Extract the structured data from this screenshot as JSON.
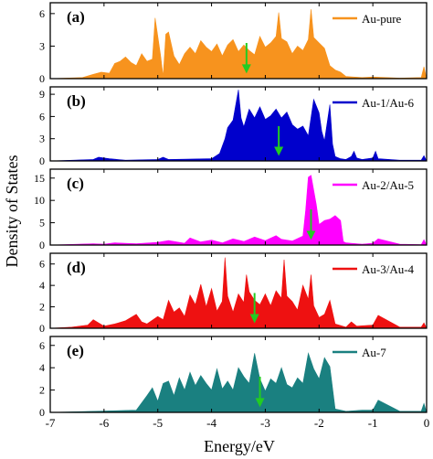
{
  "chart_data": {
    "type": "area",
    "xlabel": "Energy/eV",
    "ylabel": "Density of States",
    "xlim": [
      -7,
      0
    ],
    "x_ticks": [
      "-7",
      "-6",
      "-5",
      "-4",
      "-3",
      "-2",
      "-1",
      "0"
    ],
    "x_tick_values": [
      -7,
      -6,
      -5,
      -4,
      -3,
      -2,
      -1,
      0
    ],
    "grid": false,
    "legend_placement": "top-right",
    "arrow_color": "#22cc22",
    "panels": [
      {
        "label": "(a)",
        "series": [
          {
            "name": "Au-pure",
            "color": "#f7931e",
            "x": [
              -7,
              -6.4,
              -6.2,
              -6.05,
              -5.9,
              -5.8,
              -5.7,
              -5.6,
              -5.5,
              -5.4,
              -5.3,
              -5.2,
              -5.1,
              -5.05,
              -4.95,
              -4.9,
              -4.85,
              -4.8,
              -4.7,
              -4.6,
              -4.5,
              -4.4,
              -4.3,
              -4.2,
              -4.1,
              -4.0,
              -3.9,
              -3.8,
              -3.7,
              -3.6,
              -3.5,
              -3.4,
              -3.3,
              -3.2,
              -3.1,
              -3.0,
              -2.9,
              -2.8,
              -2.75,
              -2.7,
              -2.6,
              -2.5,
              -2.4,
              -2.3,
              -2.2,
              -2.15,
              -2.1,
              -2.0,
              -1.9,
              -1.8,
              -1.7,
              -1.6,
              -1.5,
              -1.2,
              -1.0,
              -0.5,
              -0.1,
              -0.05,
              0
            ],
            "y": [
              0,
              0.1,
              0.4,
              0.6,
              0.5,
              1.4,
              1.6,
              2.0,
              1.5,
              1.2,
              2.3,
              1.6,
              1.8,
              5.6,
              2.2,
              0.2,
              4.1,
              4.3,
              2.1,
              1.3,
              2.3,
              2.9,
              2.3,
              3.5,
              2.9,
              2.5,
              3.2,
              2.1,
              3.1,
              3.6,
              2.5,
              3.1,
              2.6,
              2.2,
              3.9,
              2.9,
              3.3,
              3.9,
              6.1,
              3.7,
              3.4,
              2.3,
              3.0,
              2.6,
              3.6,
              6.4,
              3.8,
              3.3,
              2.8,
              1.2,
              0.8,
              0.6,
              0.2,
              0.1,
              0.15,
              0.05,
              0.1,
              1.1,
              0
            ]
          }
        ],
        "ylim": [
          0,
          7
        ],
        "y_ticks": [
          "0",
          "3",
          "6"
        ],
        "y_tick_values": [
          0,
          3,
          6
        ],
        "arrow_x": -3.35
      },
      {
        "label": "(b)",
        "series": [
          {
            "name": "Au-1/Au-6",
            "color": "#0000cc",
            "x": [
              -7,
              -6.2,
              -6.1,
              -6.0,
              -5.9,
              -5.6,
              -5.0,
              -4.9,
              -4.8,
              -4.0,
              -3.85,
              -3.75,
              -3.7,
              -3.6,
              -3.5,
              -3.45,
              -3.4,
              -3.3,
              -3.2,
              -3.1,
              -3.0,
              -2.9,
              -2.8,
              -2.7,
              -2.6,
              -2.5,
              -2.4,
              -2.3,
              -2.2,
              -2.1,
              -2.0,
              -1.95,
              -1.9,
              -1.8,
              -1.75,
              -1.7,
              -1.6,
              -1.5,
              -1.4,
              -1.35,
              -1.3,
              -1.2,
              -1.0,
              -0.95,
              -0.9,
              -0.5,
              -0.1,
              -0.05,
              0
            ],
            "y": [
              0,
              0.2,
              0.5,
              0.4,
              0.3,
              0.1,
              0.2,
              0.5,
              0.2,
              0.3,
              1.0,
              3.0,
              4.5,
              5.5,
              9.6,
              5.8,
              4.6,
              7.0,
              5.8,
              7.3,
              5.6,
              6.1,
              7.0,
              5.8,
              6.6,
              4.9,
              4.3,
              4.7,
              3.4,
              8.3,
              6.5,
              4.0,
              2.7,
              7.6,
              2.3,
              0.6,
              0.3,
              0.2,
              0.6,
              1.3,
              0.4,
              0.2,
              0.4,
              1.3,
              0.3,
              0.1,
              0.1,
              0.7,
              0
            ]
          }
        ],
        "ylim": [
          0,
          10
        ],
        "y_ticks": [
          "0",
          "3",
          "6",
          "9"
        ],
        "y_tick_values": [
          0,
          3,
          6,
          9
        ],
        "arrow_x": -2.75
      },
      {
        "label": "(c)",
        "series": [
          {
            "name": "Au-2/Au-5",
            "color": "#ff00ff",
            "x": [
              -7,
              -6.2,
              -6.0,
              -5.8,
              -5.4,
              -5.0,
              -4.8,
              -4.5,
              -4.4,
              -4.2,
              -4.0,
              -3.8,
              -3.6,
              -3.4,
              -3.2,
              -3.0,
              -2.8,
              -2.7,
              -2.5,
              -2.3,
              -2.25,
              -2.2,
              -2.15,
              -2.05,
              -2.0,
              -1.9,
              -1.8,
              -1.7,
              -1.6,
              -1.55,
              -1.5,
              -1.2,
              -1.0,
              -0.9,
              -0.5,
              -0.1,
              -0.05,
              0
            ],
            "y": [
              0,
              0.3,
              0.2,
              0.5,
              0.3,
              0.6,
              1.0,
              0.4,
              1.6,
              0.7,
              1.1,
              0.5,
              1.4,
              0.8,
              1.8,
              1.0,
              2.1,
              1.3,
              0.9,
              2.0,
              7.8,
              15.2,
              15.6,
              9.0,
              4.6,
              5.5,
              5.8,
              6.6,
              5.5,
              0.8,
              0.5,
              0.2,
              0.4,
              1.4,
              0.2,
              0.1,
              1.2,
              0
            ]
          }
        ],
        "ylim": [
          0,
          17
        ],
        "y_ticks": [
          "0",
          "5",
          "10",
          "15"
        ],
        "y_tick_values": [
          0,
          5,
          10,
          15
        ],
        "arrow_x": -2.15
      },
      {
        "label": "(d)",
        "series": [
          {
            "name": "Au-3/Au-4",
            "color": "#ee1111",
            "x": [
              -7,
              -6.6,
              -6.3,
              -6.2,
              -6.0,
              -5.8,
              -5.6,
              -5.4,
              -5.3,
              -5.2,
              -5.0,
              -4.9,
              -4.8,
              -4.7,
              -4.6,
              -4.5,
              -4.4,
              -4.3,
              -4.2,
              -4.1,
              -4.0,
              -3.9,
              -3.8,
              -3.75,
              -3.7,
              -3.6,
              -3.5,
              -3.4,
              -3.35,
              -3.3,
              -3.2,
              -3.1,
              -3.0,
              -2.9,
              -2.8,
              -2.7,
              -2.65,
              -2.6,
              -2.5,
              -2.4,
              -2.3,
              -2.2,
              -2.15,
              -2.1,
              -2.0,
              -1.9,
              -1.8,
              -1.7,
              -1.5,
              -1.4,
              -1.3,
              -1.0,
              -0.9,
              -0.5,
              -0.1,
              -0.05,
              0
            ],
            "y": [
              0,
              0.1,
              0.3,
              0.8,
              0.2,
              0.4,
              0.7,
              1.3,
              0.6,
              0.4,
              1.1,
              0.8,
              2.6,
              1.5,
              1.9,
              1.1,
              3.1,
              2.2,
              4.1,
              2.0,
              3.7,
              1.6,
              2.5,
              6.6,
              3.0,
              1.5,
              3.2,
              2.4,
              5.0,
              3.4,
              2.6,
              2.2,
              3.2,
              2.1,
              3.5,
              2.8,
              6.4,
              3.0,
              2.5,
              1.7,
              4.0,
              2.7,
              5.0,
              2.1,
              1.0,
              1.3,
              2.6,
              0.4,
              0.1,
              0.6,
              0.2,
              0.3,
              1.2,
              0.1,
              0.1,
              0.5,
              0
            ]
          }
        ],
        "ylim": [
          0,
          7
        ],
        "y_ticks": [
          "0",
          "2",
          "4",
          "6"
        ],
        "y_tick_values": [
          0,
          2,
          4,
          6
        ],
        "arrow_x": -3.2
      },
      {
        "label": "(e)",
        "series": [
          {
            "name": "Au-7",
            "color": "#1a8080",
            "x": [
              -7,
              -5.4,
              -5.2,
              -5.1,
              -5.0,
              -4.9,
              -4.8,
              -4.7,
              -4.6,
              -4.5,
              -4.4,
              -4.3,
              -4.2,
              -4.1,
              -4.0,
              -3.9,
              -3.8,
              -3.7,
              -3.6,
              -3.5,
              -3.4,
              -3.3,
              -3.2,
              -3.1,
              -3.0,
              -2.9,
              -2.8,
              -2.7,
              -2.6,
              -2.5,
              -2.4,
              -2.3,
              -2.2,
              -2.1,
              -2.0,
              -1.9,
              -1.8,
              -1.7,
              -1.5,
              -1.2,
              -1.0,
              -0.9,
              -0.5,
              -0.1,
              -0.05,
              0
            ],
            "y": [
              0,
              0.2,
              1.5,
              2.2,
              1.0,
              2.6,
              2.8,
              1.5,
              3.1,
              2.0,
              3.6,
              2.4,
              3.3,
              2.6,
              2.0,
              3.9,
              2.1,
              2.8,
              2.0,
              4.0,
              3.2,
              2.6,
              5.3,
              3.0,
              1.9,
              3.0,
              2.6,
              4.0,
              2.5,
              2.2,
              3.1,
              2.6,
              5.3,
              3.9,
              3.0,
              4.9,
              4.1,
              0.3,
              0.1,
              0.2,
              0.2,
              1.1,
              0.1,
              0.1,
              0.8,
              0
            ]
          }
        ],
        "ylim": [
          0,
          6.8
        ],
        "y_ticks": [
          "0",
          "2",
          "4",
          "6"
        ],
        "y_tick_values": [
          0,
          2,
          4,
          6
        ],
        "arrow_x": -3.1
      }
    ]
  }
}
